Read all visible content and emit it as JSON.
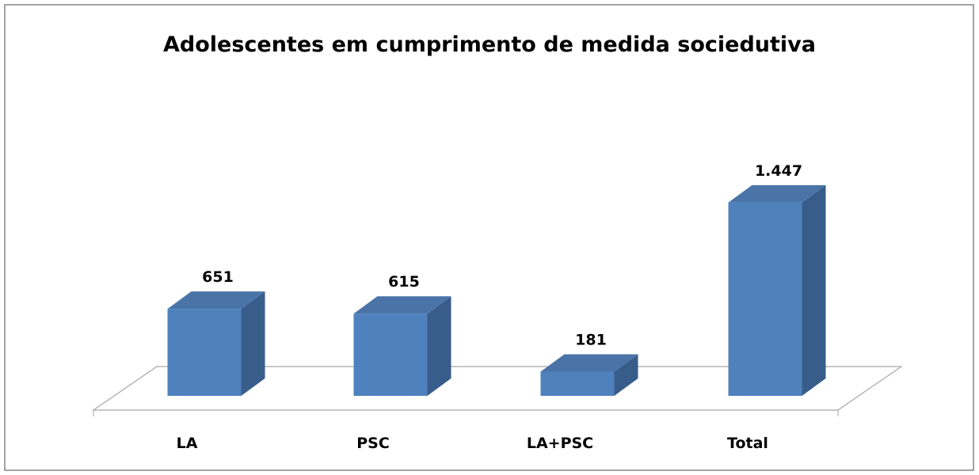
{
  "chart_data": {
    "type": "bar3d",
    "title": "Adolescentes em cumprimento de medida sociedutiva",
    "categories": [
      "LA",
      "PSC",
      "LA+PSC",
      "Total"
    ],
    "values": [
      651,
      615,
      181,
      1447
    ],
    "value_labels": [
      "651",
      "615",
      "181",
      "1.447"
    ],
    "color": "#4f81bd",
    "ylim": [
      0,
      1600
    ]
  }
}
